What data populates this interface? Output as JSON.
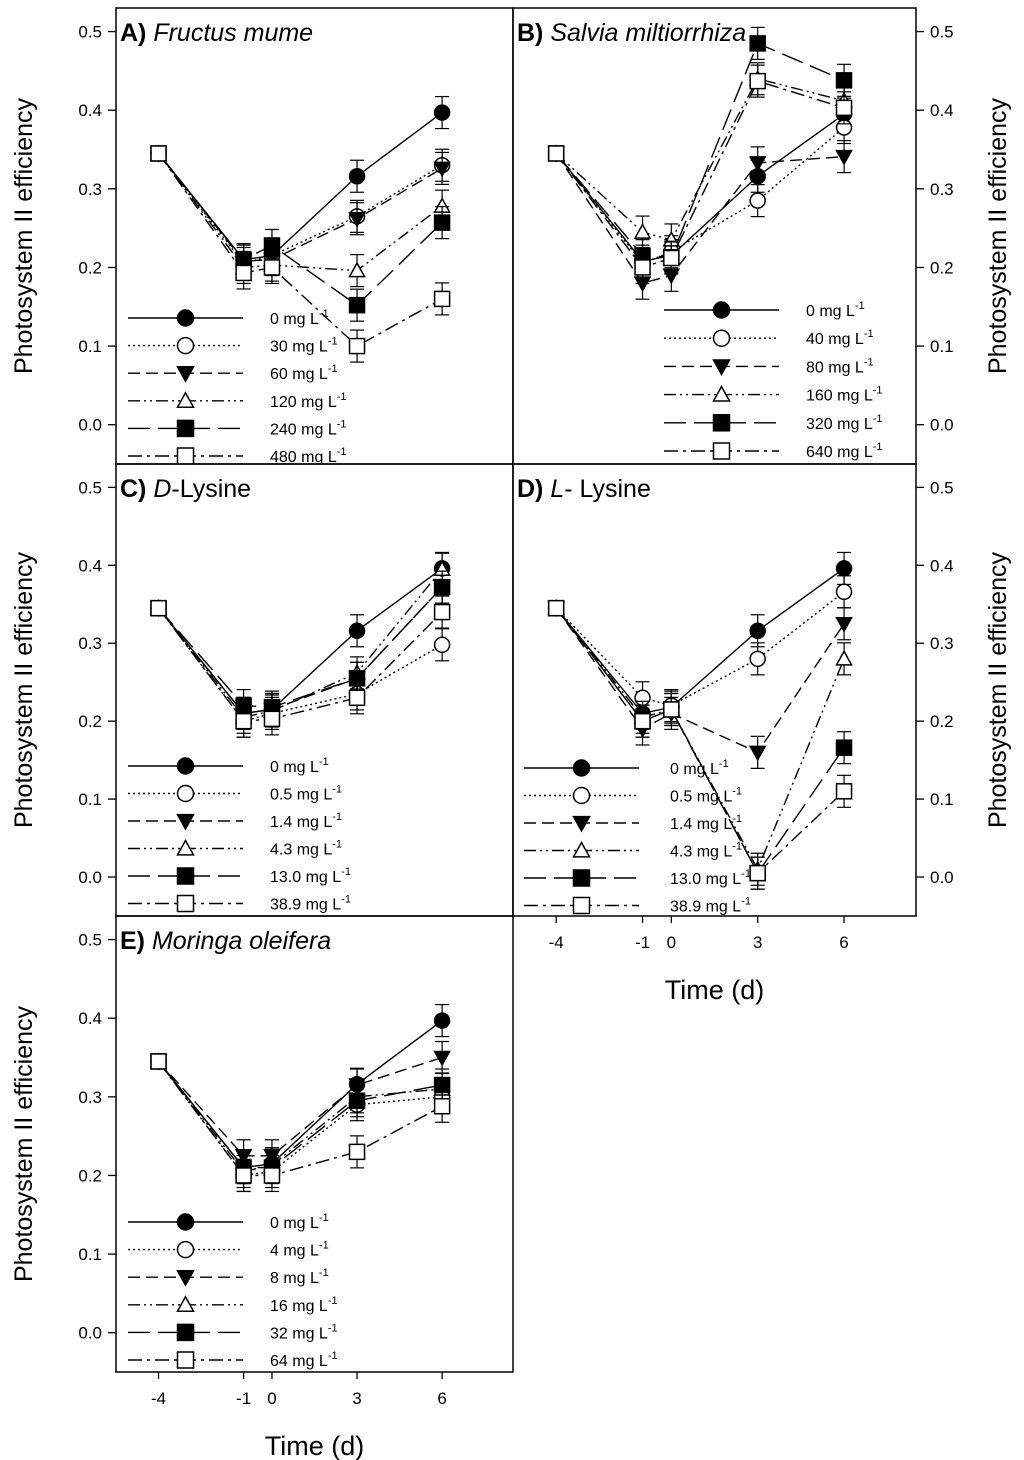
{
  "chart_data": [
    {
      "type": "line",
      "panel": "A)",
      "title": "Fructus mume",
      "title_italic": true,
      "ylabel": "Photosystem II efficiency",
      "xlabel": "",
      "x": [
        -4,
        -1,
        0,
        3,
        6
      ],
      "ylim": [
        -0.05,
        0.53
      ],
      "xlim": [
        -5.5,
        8.5
      ],
      "yticks": [
        "0.0",
        "0.1",
        "0.2",
        "0.3",
        "0.4",
        "0.5"
      ],
      "xticks": [],
      "yaxis_side": "left",
      "legend_placement": "bottom-left",
      "series": [
        {
          "name": "0 mg L",
          "sup": "-1",
          "marker": "filled-circle",
          "dash": "solid",
          "values": [
            0.345,
            0.21,
            0.215,
            0.316,
            0.397
          ]
        },
        {
          "name": "30 mg L",
          "sup": "-1",
          "marker": "open-circle",
          "dash": "dotted",
          "values": [
            0.345,
            0.205,
            0.215,
            0.265,
            0.33
          ]
        },
        {
          "name": "60 mg L",
          "sup": "-1",
          "marker": "filled-triangle-down",
          "dash": "dashed",
          "values": [
            0.345,
            0.208,
            0.21,
            0.262,
            0.326
          ]
        },
        {
          "name": "120 mg L",
          "sup": "-1",
          "marker": "open-triangle-up",
          "dash": "dash-dot-dot",
          "values": [
            0.345,
            0.2,
            0.203,
            0.196,
            0.278
          ]
        },
        {
          "name": "240 mg L",
          "sup": "-1",
          "marker": "filled-square",
          "dash": "long-dash",
          "values": [
            0.345,
            0.21,
            0.228,
            0.152,
            0.257
          ]
        },
        {
          "name": "480 mg L",
          "sup": "-1",
          "marker": "open-square",
          "dash": "dash-dot",
          "values": [
            0.345,
            0.193,
            0.2,
            0.1,
            0.16
          ]
        }
      ]
    },
    {
      "type": "line",
      "panel": "B)",
      "title": "Salvia miltiorrhiza",
      "title_italic": true,
      "ylabel": "Photosystem II efficiency",
      "xlabel": "",
      "x": [
        -4,
        -1,
        0,
        3,
        6
      ],
      "ylim": [
        -0.05,
        0.53
      ],
      "xlim": [
        -5.5,
        8.5
      ],
      "yticks": [
        "0.0",
        "0.1",
        "0.2",
        "0.3",
        "0.4",
        "0.5"
      ],
      "xticks": [],
      "yaxis_side": "right",
      "legend_placement": "bottom-right",
      "series": [
        {
          "name": "0 mg L",
          "sup": "-1",
          "marker": "filled-circle",
          "dash": "solid",
          "values": [
            0.345,
            0.208,
            0.215,
            0.316,
            0.395
          ]
        },
        {
          "name": "40 mg L",
          "sup": "-1",
          "marker": "open-circle",
          "dash": "dotted",
          "values": [
            0.345,
            0.205,
            0.22,
            0.285,
            0.378
          ]
        },
        {
          "name": "80 mg L",
          "sup": "-1",
          "marker": "filled-triangle-down",
          "dash": "dashed",
          "values": [
            0.345,
            0.18,
            0.19,
            0.333,
            0.341
          ]
        },
        {
          "name": "160 mg L",
          "sup": "-1",
          "marker": "open-triangle-up",
          "dash": "dash-dot-dot",
          "values": [
            0.345,
            0.245,
            0.235,
            0.44,
            0.412
          ]
        },
        {
          "name": "320 mg L",
          "sup": "-1",
          "marker": "filled-square",
          "dash": "long-dash",
          "values": [
            0.345,
            0.215,
            0.213,
            0.485,
            0.438
          ]
        },
        {
          "name": "640 mg L",
          "sup": "-1",
          "marker": "open-square",
          "dash": "dash-dot",
          "values": [
            0.345,
            0.2,
            0.212,
            0.437,
            0.403
          ]
        }
      ]
    },
    {
      "type": "line",
      "panel": "C)",
      "title_prefix_italic": "D",
      "title": "-Lysine",
      "title_italic": false,
      "ylabel": "Photosystem II efficiency",
      "xlabel": "",
      "x": [
        -4,
        -1,
        0,
        3,
        6
      ],
      "ylim": [
        -0.05,
        0.53
      ],
      "xlim": [
        -5.5,
        8.5
      ],
      "yticks": [
        "0.0",
        "0.1",
        "0.2",
        "0.3",
        "0.4",
        "0.5"
      ],
      "xticks": [],
      "yaxis_side": "left",
      "legend_placement": "bottom-left",
      "series": [
        {
          "name": "0 mg L",
          "sup": "-1",
          "marker": "filled-circle",
          "dash": "solid",
          "values": [
            0.345,
            0.21,
            0.215,
            0.316,
            0.396
          ]
        },
        {
          "name": "0.5 mg L",
          "sup": "-1",
          "marker": "open-circle",
          "dash": "dotted",
          "values": [
            0.345,
            0.2,
            0.21,
            0.235,
            0.298
          ]
        },
        {
          "name": "1.4 mg L",
          "sup": "-1",
          "marker": "filled-triangle-down",
          "dash": "dashed",
          "values": [
            0.345,
            0.21,
            0.215,
            0.255,
            0.372
          ]
        },
        {
          "name": "4.3 mg L",
          "sup": "-1",
          "marker": "open-triangle-up",
          "dash": "dash-dot-dot",
          "values": [
            0.345,
            0.205,
            0.213,
            0.262,
            0.395
          ]
        },
        {
          "name": "13.0 mg L",
          "sup": "-1",
          "marker": "filled-square",
          "dash": "long-dash",
          "values": [
            0.345,
            0.22,
            0.218,
            0.255,
            0.372
          ]
        },
        {
          "name": "38.9 mg L",
          "sup": "-1",
          "marker": "open-square",
          "dash": "dash-dot",
          "values": [
            0.345,
            0.2,
            0.203,
            0.23,
            0.34
          ]
        }
      ]
    },
    {
      "type": "line",
      "panel": "D)",
      "title_prefix_italic": "L",
      "title": "- Lysine",
      "title_italic": false,
      "ylabel": "Photosystem II efficiency",
      "xlabel": "Time (d)",
      "x": [
        -4,
        -1,
        0,
        3,
        6
      ],
      "ylim": [
        -0.05,
        0.53
      ],
      "xlim": [
        -5.5,
        8.5
      ],
      "yticks": [
        "0.0",
        "0.1",
        "0.2",
        "0.3",
        "0.4",
        "0.5"
      ],
      "xticks": [
        "-4",
        "-1",
        "0",
        "3",
        "6"
      ],
      "yaxis_side": "right",
      "legend_placement": "bottom-left",
      "series": [
        {
          "name": "0 mg L",
          "sup": "-1",
          "marker": "filled-circle",
          "dash": "solid",
          "values": [
            0.345,
            0.21,
            0.218,
            0.316,
            0.396
          ]
        },
        {
          "name": "0.5 mg L",
          "sup": "-1",
          "marker": "open-circle",
          "dash": "dotted",
          "values": [
            0.345,
            0.23,
            0.22,
            0.28,
            0.366
          ]
        },
        {
          "name": "1.4 mg L",
          "sup": "-1",
          "marker": "filled-triangle-down",
          "dash": "dashed",
          "values": [
            0.345,
            0.19,
            0.21,
            0.16,
            0.325
          ]
        },
        {
          "name": "4.3 mg L",
          "sup": "-1",
          "marker": "open-triangle-up",
          "dash": "dash-dot-dot",
          "values": [
            0.345,
            0.205,
            0.215,
            0.01,
            0.28
          ]
        },
        {
          "name": "13.0 mg L",
          "sup": "-1",
          "marker": "filled-square",
          "dash": "long-dash",
          "values": [
            0.345,
            0.2,
            0.215,
            0.005,
            0.166
          ]
        },
        {
          "name": "38.9 mg L",
          "sup": "-1",
          "marker": "open-square",
          "dash": "dash-dot",
          "values": [
            0.345,
            0.2,
            0.215,
            0.005,
            0.11
          ]
        }
      ]
    },
    {
      "type": "line",
      "panel": "E)",
      "title": "Moringa oleifera",
      "title_italic": true,
      "ylabel": "Photosystem II efficiency",
      "xlabel": "Time (d)",
      "x": [
        -4,
        -1,
        0,
        3,
        6
      ],
      "ylim": [
        -0.05,
        0.53
      ],
      "xlim": [
        -5.5,
        8.5
      ],
      "yticks": [
        "0.0",
        "0.1",
        "0.2",
        "0.3",
        "0.4",
        "0.5"
      ],
      "xticks": [
        "-4",
        "-1",
        "0",
        "3",
        "6"
      ],
      "yaxis_side": "left",
      "legend_placement": "bottom-left",
      "series": [
        {
          "name": "0 mg L",
          "sup": "-1",
          "marker": "filled-circle",
          "dash": "solid",
          "values": [
            0.345,
            0.21,
            0.215,
            0.316,
            0.397
          ]
        },
        {
          "name": "4 mg L",
          "sup": "-1",
          "marker": "open-circle",
          "dash": "dotted",
          "values": [
            0.345,
            0.2,
            0.205,
            0.29,
            0.3
          ]
        },
        {
          "name": "8 mg L",
          "sup": "-1",
          "marker": "filled-triangle-down",
          "dash": "dashed",
          "values": [
            0.345,
            0.225,
            0.225,
            0.315,
            0.35
          ]
        },
        {
          "name": "16 mg L",
          "sup": "-1",
          "marker": "open-triangle-up",
          "dash": "dash-dot-dot",
          "values": [
            0.345,
            0.205,
            0.213,
            0.3,
            0.31
          ]
        },
        {
          "name": "32 mg L",
          "sup": "-1",
          "marker": "filled-square",
          "dash": "long-dash",
          "values": [
            0.345,
            0.21,
            0.21,
            0.295,
            0.315
          ]
        },
        {
          "name": "64 mg L",
          "sup": "-1",
          "marker": "open-square",
          "dash": "dash-dot",
          "values": [
            0.345,
            0.2,
            0.2,
            0.23,
            0.288
          ]
        }
      ]
    }
  ]
}
